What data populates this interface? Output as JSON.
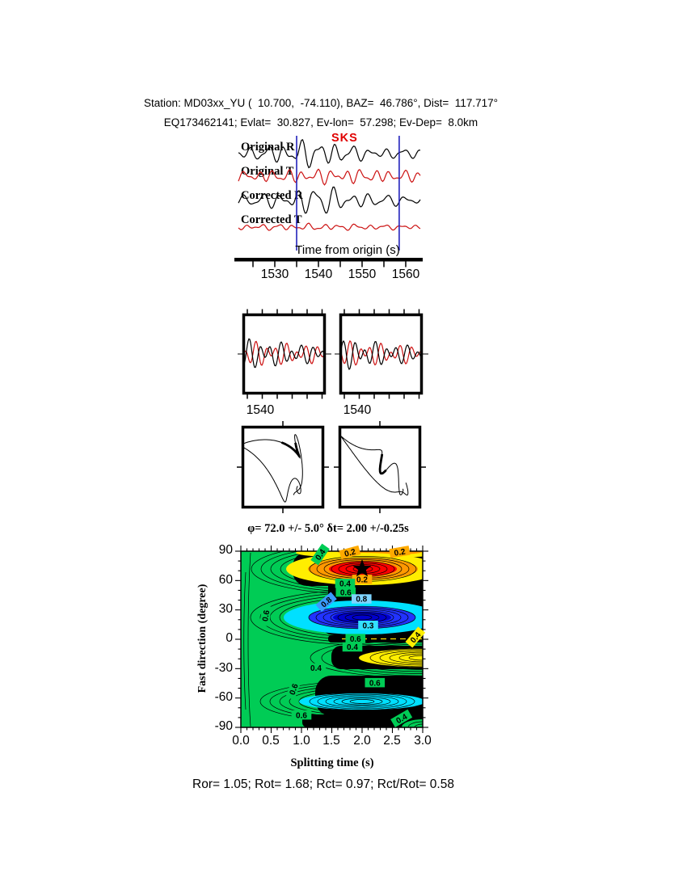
{
  "header": {
    "line1": "Station: MD03xx_YU (  10.700,  -74.110), BAZ=  46.786°, Dist=  117.717°",
    "line2": "EQ173462141; Evlat=  30.827, Ev-lon=  57.298; Ev-Dep=  8.0km"
  },
  "waveform_panel": {
    "phase_label": "SKS",
    "traces": [
      {
        "label": "Original R",
        "color": "#000000"
      },
      {
        "label": "Original T",
        "color": "#cc1111"
      },
      {
        "label": "Corrected R",
        "color": "#000000"
      },
      {
        "label": "Corrected T",
        "color": "#cc1111"
      }
    ],
    "axis": {
      "label": "Time from origin (s)",
      "tick_labels": [
        "1530",
        "1540",
        "1550",
        "1560"
      ]
    }
  },
  "window_panel": {
    "left_label": "1540",
    "right_label": "1540"
  },
  "contour_panel": {
    "title": "φ= 72.0 +/- 5.0° δt= 2.00 +/-0.25s",
    "xlabel": "Splitting time (s)",
    "ylabel": "Fast direction (degree)",
    "xtick_labels": [
      "0.0",
      "0.5",
      "1.0",
      "1.5",
      "2.0",
      "2.5",
      "3.0"
    ],
    "ytick_labels": [
      "90",
      "60",
      "30",
      "0",
      "-30",
      "-60",
      "-90"
    ]
  },
  "results": {
    "line": "Ror= 1.05; Rot= 1.68; Rct= 0.97; Rct/Rot= 0.58"
  },
  "colors": {
    "trace_red": "#cc1111",
    "marker_blue": "#2222bb",
    "contour_green": "#00cc55",
    "hot_red": "#ff0000",
    "hot_orange": "#ff9900",
    "hot_yellow": "#ffee00",
    "cold_cyan": "#00e0ff",
    "cold_blue": "#2233ff",
    "cold_core": "#0000cc",
    "label_colors": {
      "green": "#00cc55",
      "orange": "#ffaa00",
      "yellow": "#ffee00",
      "cyan": "#33e0ff",
      "blue2": "#3a9bff",
      "blue3": "#7fd4ff"
    }
  },
  "chart_data": {
    "type": "contour",
    "waveforms": {
      "time_axis": {
        "label": "Time from origin (s)",
        "ticks": [
          1530,
          1540,
          1550,
          1560
        ],
        "minor_tick_s": 5
      },
      "trace_names": [
        "Original R",
        "Original T",
        "Corrected R",
        "Corrected T"
      ],
      "phase_marker": "SKS",
      "window_lines_s": [
        1535,
        1558.5
      ]
    },
    "window_zoom": {
      "tick_label": 1540
    },
    "error_surface": {
      "title": "φ= 72.0 +/- 5.0° δt= 2.00 +/-0.25s",
      "xlabel": "Splitting time (s)",
      "ylabel": "Fast direction (degree)",
      "xlim": [
        0,
        3
      ],
      "ylim": [
        -90,
        90
      ],
      "xticks": [
        0,
        0.5,
        1,
        1.5,
        2,
        2.5,
        3
      ],
      "yticks": [
        90,
        60,
        30,
        0,
        -30,
        -60,
        -90
      ],
      "best_phi_deg": 72.0,
      "phi_err_deg": 5.0,
      "best_dt_s": 2.0,
      "dt_err_s": 0.25,
      "star": {
        "dt_s": 2.0,
        "phi_deg": 72
      },
      "contour_labels": [
        {
          "dt": 1.31,
          "phi": 86.5,
          "text": "0.4",
          "bg": "green",
          "rot": -55
        },
        {
          "dt": 1.8,
          "phi": 88.5,
          "text": "0.2",
          "bg": "orange",
          "rot": -15
        },
        {
          "dt": 2.62,
          "phi": 89.0,
          "text": "0.2",
          "bg": "orange",
          "rot": -10
        },
        {
          "dt": 2.0,
          "phi": 61.0,
          "text": "0.2",
          "bg": "orange",
          "rot": 0
        },
        {
          "dt": 1.72,
          "phi": 57.0,
          "text": "0.4",
          "bg": "green",
          "rot": 0
        },
        {
          "dt": 1.73,
          "phi": 48.0,
          "text": "0.6",
          "bg": "green",
          "rot": 0
        },
        {
          "dt": 1.41,
          "phi": 38.0,
          "text": "0.8",
          "bg": "blue2",
          "rot": -40
        },
        {
          "dt": 1.99,
          "phi": 41.0,
          "text": "0.8",
          "bg": "blue3",
          "rot": 0
        },
        {
          "dt": 2.1,
          "phi": 14.0,
          "text": "0.3",
          "bg": "cyan",
          "rot": 0
        },
        {
          "dt": 1.89,
          "phi": 0.5,
          "text": "0.6",
          "bg": "green",
          "rot": 0
        },
        {
          "dt": 1.84,
          "phi": -8.0,
          "text": "0.4",
          "bg": "green",
          "rot": 0
        },
        {
          "dt": 2.88,
          "phi": 2.0,
          "text": "0.4",
          "bg": "yellow",
          "rot": -50
        },
        {
          "dt": 1.24,
          "phi": -29.5,
          "text": "0.4",
          "bg": "green",
          "rot": 0
        },
        {
          "dt": 2.21,
          "phi": -44.5,
          "text": "0.6",
          "bg": "green",
          "rot": 0
        },
        {
          "dt": 0.87,
          "phi": -51.0,
          "text": "0.6",
          "bg": "green",
          "rot": -70
        },
        {
          "dt": 0.41,
          "phi": 24.0,
          "text": "0.6",
          "bg": "green",
          "rot": -80
        },
        {
          "dt": 1.0,
          "phi": -77.5,
          "text": "0.6",
          "bg": "green",
          "rot": 0
        },
        {
          "dt": 2.65,
          "phi": -81.0,
          "text": "0.4",
          "bg": "green",
          "rot": -30
        }
      ]
    },
    "quality": {
      "Ror": 1.05,
      "Rot": 1.68,
      "Rct": 0.97,
      "Rct_over_Rot": 0.58
    }
  }
}
